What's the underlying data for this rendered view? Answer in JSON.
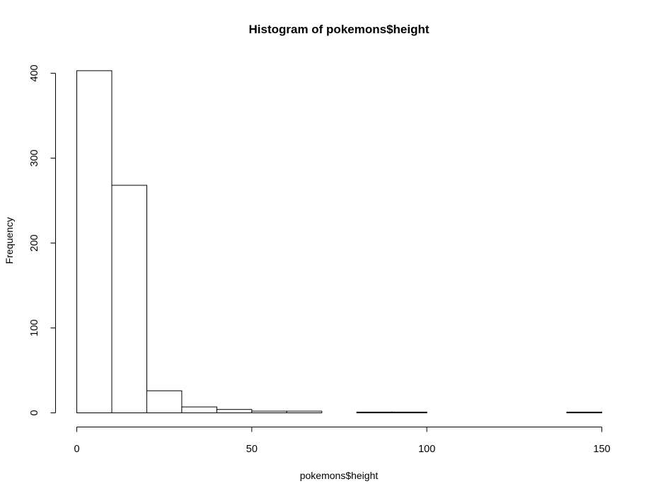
{
  "chart_data": {
    "type": "bar",
    "title": "Histogram of pokemons$height",
    "xlabel": "pokemons$height",
    "ylabel": "Frequency",
    "bin_edges": [
      0,
      10,
      20,
      30,
      40,
      50,
      60,
      70,
      80,
      90,
      100,
      110,
      120,
      130,
      140,
      150
    ],
    "values": [
      403,
      268,
      26,
      7,
      4,
      2,
      2,
      0,
      1,
      1,
      0,
      0,
      0,
      0,
      1
    ],
    "xlim": [
      0,
      150
    ],
    "ylim": [
      0,
      400
    ],
    "x_ticks": [
      0,
      50,
      100,
      150
    ],
    "y_ticks": [
      0,
      100,
      200,
      300,
      400
    ],
    "grid": false,
    "legend": "none"
  }
}
